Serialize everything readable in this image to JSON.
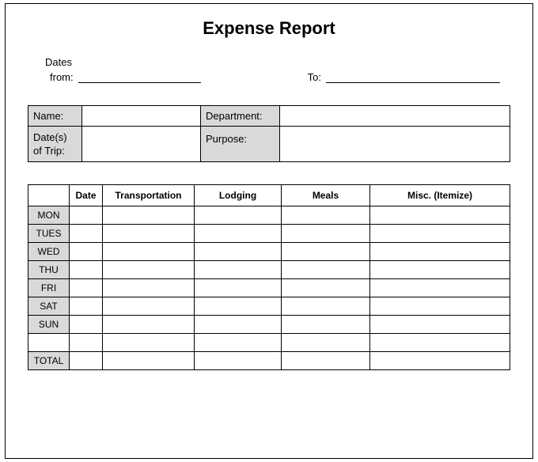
{
  "title": "Expense Report",
  "dates": {
    "section_label": "Dates",
    "from_label": "from:",
    "to_label": "To:",
    "from_value": "",
    "to_value": ""
  },
  "info": {
    "name_label": "Name:",
    "name_value": "",
    "department_label": "Department:",
    "department_value": "",
    "dates_of_trip_label": "Date(s) of Trip:",
    "dates_of_trip_value": "",
    "purpose_label": "Purpose:",
    "purpose_value": ""
  },
  "expense_table": {
    "headers": {
      "day": "",
      "date": "Date",
      "transportation": "Transportation",
      "lodging": "Lodging",
      "meals": "Meals",
      "misc": "Misc. (Itemize)"
    },
    "rows": [
      {
        "day": "MON",
        "date": "",
        "transportation": "",
        "lodging": "",
        "meals": "",
        "misc": ""
      },
      {
        "day": "TUES",
        "date": "",
        "transportation": "",
        "lodging": "",
        "meals": "",
        "misc": ""
      },
      {
        "day": "WED",
        "date": "",
        "transportation": "",
        "lodging": "",
        "meals": "",
        "misc": ""
      },
      {
        "day": "THU",
        "date": "",
        "transportation": "",
        "lodging": "",
        "meals": "",
        "misc": ""
      },
      {
        "day": "FRI",
        "date": "",
        "transportation": "",
        "lodging": "",
        "meals": "",
        "misc": ""
      },
      {
        "day": "SAT",
        "date": "",
        "transportation": "",
        "lodging": "",
        "meals": "",
        "misc": ""
      },
      {
        "day": "SUN",
        "date": "",
        "transportation": "",
        "lodging": "",
        "meals": "",
        "misc": ""
      }
    ],
    "blank_row": {
      "day": "",
      "date": "",
      "transportation": "",
      "lodging": "",
      "meals": "",
      "misc": ""
    },
    "total_row": {
      "day": "TOTAL",
      "date": "",
      "transportation": "",
      "lodging": "",
      "meals": "",
      "misc": ""
    }
  },
  "styling": {
    "header_bg": "#d9d9d9",
    "border_color": "#000000",
    "page_bg": "#ffffff",
    "title_fontsize": 22,
    "body_fontsize": 13,
    "table_fontsize": 12
  }
}
